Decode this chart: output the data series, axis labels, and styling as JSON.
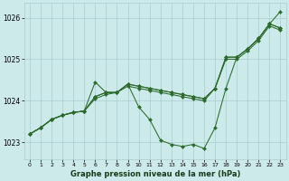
{
  "title": "Graphe pression niveau de la mer (hPa)",
  "background_color": "#cceaea",
  "grid_color": "#aacccc",
  "line_color": "#2d6a2d",
  "marker_color": "#2d6a2d",
  "xlim": [
    -0.5,
    23.5
  ],
  "ylim": [
    1022.6,
    1026.35
  ],
  "yticks": [
    1023,
    1024,
    1025,
    1026
  ],
  "xtick_labels": [
    "0",
    "1",
    "2",
    "3",
    "4",
    "5",
    "6",
    "7",
    "8",
    "9",
    "10",
    "11",
    "12",
    "13",
    "14",
    "15",
    "16",
    "17",
    "18",
    "19",
    "20",
    "21",
    "22",
    "23"
  ],
  "series": [
    [
      1023.2,
      1023.35,
      1023.55,
      1023.65,
      1023.72,
      1023.75,
      1024.45,
      1024.2,
      1024.2,
      1024.4,
      1023.85,
      1023.55,
      1023.05,
      1022.95,
      1022.9,
      1022.95,
      1022.85,
      1023.35,
      1024.3,
      1025.05,
      1025.25,
      1025.5,
      1025.85,
      1026.15
    ],
    [
      1023.2,
      1023.35,
      1023.55,
      1023.65,
      1023.72,
      1023.75,
      1024.1,
      1024.2,
      1024.2,
      1024.4,
      1024.35,
      1024.3,
      1024.25,
      1024.2,
      1024.15,
      1024.1,
      1024.05,
      1024.3,
      1025.05,
      1025.05,
      1025.25,
      1025.5,
      1025.85,
      1025.75
    ],
    [
      1023.2,
      1023.35,
      1023.55,
      1023.65,
      1023.72,
      1023.75,
      1024.1,
      1024.2,
      1024.2,
      1024.4,
      1024.35,
      1024.3,
      1024.25,
      1024.2,
      1024.15,
      1024.1,
      1024.05,
      1024.3,
      1025.05,
      1025.05,
      1025.25,
      1025.5,
      1025.85,
      1025.75
    ],
    [
      1023.2,
      1023.35,
      1023.55,
      1023.65,
      1023.72,
      1023.75,
      1024.05,
      1024.15,
      1024.2,
      1024.35,
      1024.3,
      1024.25,
      1024.2,
      1024.15,
      1024.1,
      1024.05,
      1024.0,
      1024.3,
      1025.0,
      1025.0,
      1025.2,
      1025.45,
      1025.8,
      1025.7
    ]
  ],
  "figsize": [
    3.2,
    2.0
  ],
  "dpi": 100
}
